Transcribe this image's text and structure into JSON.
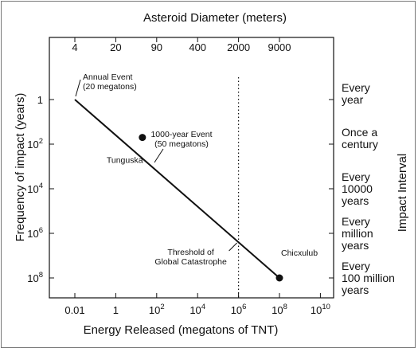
{
  "chart_data": {
    "type": "line",
    "title": "",
    "top_axis_label": "Asteroid Diameter (meters)",
    "top_ticks": [
      {
        "label": "4",
        "energy": 0.01
      },
      {
        "label": "20",
        "energy": 1
      },
      {
        "label": "90",
        "energy": 100
      },
      {
        "label": "400",
        "energy": 10000
      },
      {
        "label": "2000",
        "energy": 1000000
      },
      {
        "label": "9000",
        "energy": 100000000
      }
    ],
    "xlabel": "Energy Released (megatons of TNT)",
    "x_scale": "log",
    "xlim": [
      0.005,
      300000000
    ],
    "x_ticks": [
      {
        "value": 0.01,
        "base": "0.01",
        "exp": ""
      },
      {
        "value": 1,
        "base": "1",
        "exp": ""
      },
      {
        "value": 100,
        "base": "10",
        "exp": "2"
      },
      {
        "value": 10000,
        "base": "10",
        "exp": "4"
      },
      {
        "value": 1000000,
        "base": "10",
        "exp": "6"
      },
      {
        "value": 100000000,
        "base": "10",
        "exp": "8"
      },
      {
        "value": 10000000000,
        "base": "10",
        "exp": "10"
      }
    ],
    "ylabel": "Frequency of impact (years)",
    "y_scale": "log",
    "y_ticks": [
      {
        "value": 1,
        "base": "1",
        "exp": ""
      },
      {
        "value": 100,
        "base": "10",
        "exp": "2"
      },
      {
        "value": 10000,
        "base": "10",
        "exp": "4"
      },
      {
        "value": 1000000,
        "base": "10",
        "exp": "6"
      },
      {
        "value": 100000000,
        "base": "10",
        "exp": "8"
      }
    ],
    "right_axis_label": "Impact Interval",
    "right_labels": [
      {
        "value": 1,
        "lines": [
          "Every",
          "year"
        ]
      },
      {
        "value": 100,
        "lines": [
          "Once a",
          "century"
        ]
      },
      {
        "value": 10000,
        "lines": [
          "Every",
          "10000",
          "years"
        ]
      },
      {
        "value": 1000000,
        "lines": [
          "Every",
          "million",
          "years"
        ]
      },
      {
        "value": 100000000,
        "lines": [
          "Every",
          "100 million",
          "years"
        ]
      }
    ],
    "line": {
      "x": [
        0.01,
        100000000
      ],
      "y": [
        1,
        100000000
      ]
    },
    "points": [
      {
        "name": "Tunguska",
        "x": 20,
        "y": 50
      },
      {
        "name": "Chicxulub",
        "x": 100000000,
        "y": 100000000
      }
    ],
    "threshold": {
      "x": 1000000,
      "label_lines": [
        "Threshold of",
        "Global Catastrophe"
      ]
    },
    "annotations": [
      {
        "lines": [
          "Annual Event",
          "(20 megatons)"
        ]
      },
      {
        "lines": [
          "1000-year Event",
          "(50 megatons)"
        ]
      }
    ]
  }
}
